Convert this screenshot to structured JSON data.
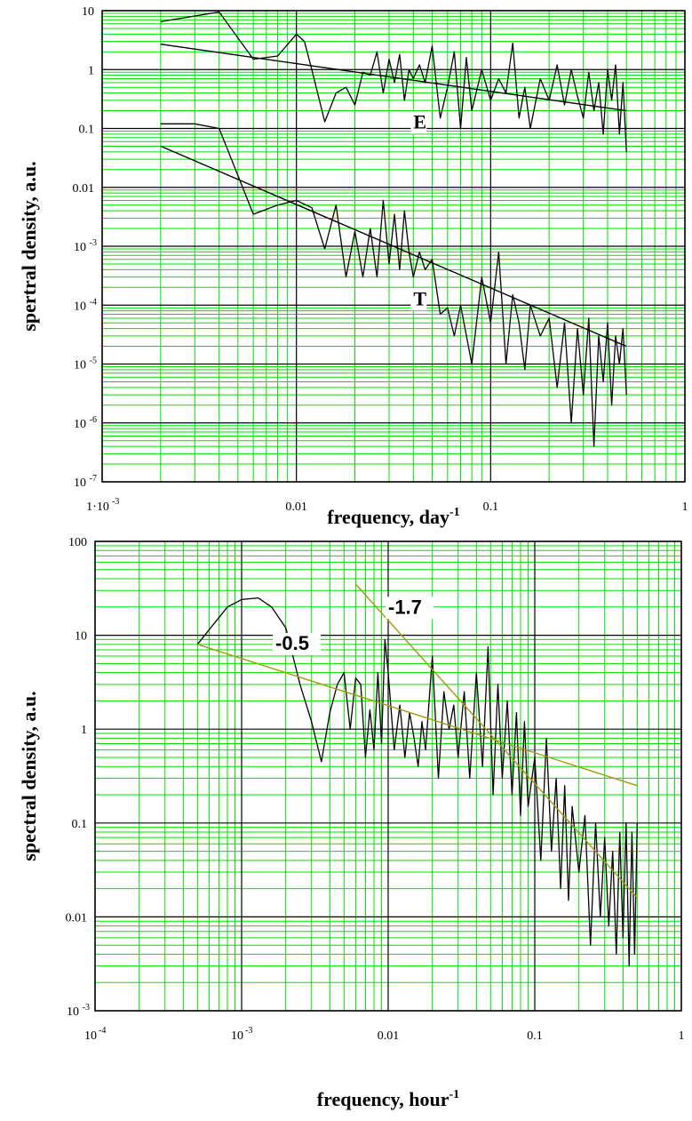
{
  "chart_data": [
    {
      "type": "line",
      "log_x": true,
      "log_y": true,
      "xlim": [
        0.001,
        1
      ],
      "ylim": [
        1e-07,
        10
      ],
      "grid": true,
      "grid_color": "#00e000",
      "major_grid_color": "#000000",
      "line_color": "#000000",
      "xlabel": "frequency, day",
      "xlabel_sup": "-1",
      "ylabel": "spertral density, a.u.",
      "xticks": [
        {
          "value": 0.001,
          "label": "1·10",
          "sup": "-3"
        },
        {
          "value": 0.01,
          "label": "0.01",
          "sup": ""
        },
        {
          "value": 0.1,
          "label": "0.1",
          "sup": ""
        },
        {
          "value": 1,
          "label": "1",
          "sup": ""
        }
      ],
      "yticks": [
        {
          "value": 10,
          "label": "10",
          "sup": ""
        },
        {
          "value": 1,
          "label": "1",
          "sup": ""
        },
        {
          "value": 0.1,
          "label": "0.1",
          "sup": ""
        },
        {
          "value": 0.01,
          "label": "0.01",
          "sup": ""
        },
        {
          "value": 0.001,
          "label": "10",
          "sup": "-3"
        },
        {
          "value": 0.0001,
          "label": "10",
          "sup": "-4"
        },
        {
          "value": 1e-05,
          "label": "10",
          "sup": "-5"
        },
        {
          "value": 1e-06,
          "label": "10",
          "sup": "-6"
        },
        {
          "value": 1e-07,
          "label": "10",
          "sup": "-7"
        }
      ],
      "series": [
        {
          "name": "E",
          "label_at": [
            0.04,
            0.1
          ],
          "x": [
            0.002,
            0.004,
            0.006,
            0.008,
            0.01,
            0.011,
            0.012,
            0.014,
            0.016,
            0.018,
            0.02,
            0.022,
            0.024,
            0.026,
            0.028,
            0.03,
            0.032,
            0.034,
            0.036,
            0.038,
            0.04,
            0.043,
            0.046,
            0.05,
            0.055,
            0.06,
            0.065,
            0.07,
            0.075,
            0.08,
            0.09,
            0.1,
            0.11,
            0.12,
            0.13,
            0.14,
            0.15,
            0.16,
            0.18,
            0.2,
            0.22,
            0.24,
            0.26,
            0.28,
            0.3,
            0.32,
            0.34,
            0.36,
            0.38,
            0.4,
            0.42,
            0.44,
            0.46,
            0.48,
            0.5
          ],
          "values": [
            6.5,
            9.5,
            1.5,
            1.7,
            4.0,
            3.0,
            1.0,
            0.13,
            0.4,
            0.5,
            0.25,
            0.9,
            0.8,
            2.0,
            0.4,
            1.5,
            0.6,
            1.8,
            0.3,
            1.0,
            0.7,
            1.2,
            0.6,
            2.5,
            0.15,
            0.5,
            2.0,
            0.1,
            1.6,
            0.2,
            1.0,
            0.3,
            0.7,
            0.4,
            2.8,
            0.15,
            0.5,
            0.1,
            0.7,
            0.3,
            1.2,
            0.25,
            1.0,
            0.35,
            0.15,
            0.9,
            0.2,
            0.6,
            0.08,
            1.0,
            0.3,
            1.2,
            0.08,
            0.6,
            0.04
          ]
        },
        {
          "name": "",
          "x": [
            0.002,
            0.5
          ],
          "values": [
            2.7,
            0.2
          ]
        },
        {
          "name": "T",
          "label_at": [
            0.04,
            0.0001
          ],
          "x": [
            0.002,
            0.003,
            0.004,
            0.006,
            0.008,
            0.01,
            0.012,
            0.014,
            0.016,
            0.018,
            0.02,
            0.022,
            0.024,
            0.026,
            0.028,
            0.03,
            0.032,
            0.034,
            0.036,
            0.038,
            0.04,
            0.043,
            0.046,
            0.05,
            0.055,
            0.06,
            0.065,
            0.07,
            0.08,
            0.09,
            0.1,
            0.11,
            0.12,
            0.13,
            0.14,
            0.15,
            0.16,
            0.18,
            0.2,
            0.22,
            0.24,
            0.26,
            0.28,
            0.3,
            0.32,
            0.34,
            0.36,
            0.38,
            0.4,
            0.42,
            0.44,
            0.46,
            0.48,
            0.5
          ],
          "values": [
            0.12,
            0.12,
            0.1,
            0.0035,
            0.005,
            0.006,
            0.0045,
            0.0009,
            0.005,
            0.0003,
            0.0018,
            0.0003,
            0.002,
            0.0003,
            0.006,
            0.0005,
            0.0035,
            0.0004,
            0.004,
            0.0008,
            0.0003,
            0.0008,
            0.0004,
            0.0006,
            7e-05,
            9e-05,
            3e-05,
            0.0001,
            1e-05,
            0.0003,
            5e-05,
            0.0008,
            1e-05,
            0.00015,
            5e-05,
            8e-06,
            0.0001,
            3e-05,
            6e-05,
            4e-06,
            5e-05,
            1e-06,
            4e-05,
            3e-06,
            6e-05,
            4e-07,
            3e-05,
            5e-06,
            5e-05,
            2e-06,
            3e-05,
            1e-05,
            4e-05,
            3e-06
          ]
        },
        {
          "name": "",
          "x": [
            0.002,
            0.5
          ],
          "values": [
            0.05,
            2e-05
          ]
        }
      ]
    },
    {
      "type": "line",
      "log_x": true,
      "log_y": true,
      "xlim": [
        0.0001,
        1
      ],
      "ylim": [
        0.001,
        100
      ],
      "grid": true,
      "grid_color": "#00e000",
      "major_grid_color": "#000000",
      "line_color": "#000000",
      "fit_color": "#a09a10",
      "xlabel": "frequency, hour",
      "xlabel_sup": "-1",
      "ylabel": "spectral density, a.u.",
      "xticks": [
        {
          "value": 0.0001,
          "label": "10",
          "sup": "-4"
        },
        {
          "value": 0.001,
          "label": "10",
          "sup": "-3"
        },
        {
          "value": 0.01,
          "label": "0.01",
          "sup": ""
        },
        {
          "value": 0.1,
          "label": "0.1",
          "sup": ""
        },
        {
          "value": 1,
          "label": "1",
          "sup": ""
        }
      ],
      "yticks": [
        {
          "value": 100,
          "label": "100",
          "sup": ""
        },
        {
          "value": 10,
          "label": "10",
          "sup": ""
        },
        {
          "value": 1,
          "label": "1",
          "sup": ""
        },
        {
          "value": 0.1,
          "label": "0.1",
          "sup": ""
        },
        {
          "value": 0.01,
          "label": "0.01",
          "sup": ""
        },
        {
          "value": 0.001,
          "label": "10",
          "sup": "-3"
        }
      ],
      "series": [
        {
          "name": "",
          "x": [
            0.0005,
            0.0008,
            0.001,
            0.0013,
            0.0016,
            0.002,
            0.0025,
            0.003,
            0.0035,
            0.004,
            0.0045,
            0.005,
            0.0055,
            0.006,
            0.0065,
            0.007,
            0.0075,
            0.008,
            0.0085,
            0.009,
            0.0095,
            0.01,
            0.011,
            0.012,
            0.013,
            0.014,
            0.015,
            0.016,
            0.017,
            0.018,
            0.02,
            0.022,
            0.024,
            0.026,
            0.028,
            0.03,
            0.033,
            0.036,
            0.04,
            0.044,
            0.048,
            0.052,
            0.056,
            0.06,
            0.065,
            0.07,
            0.075,
            0.08,
            0.085,
            0.09,
            0.1,
            0.11,
            0.12,
            0.13,
            0.14,
            0.15,
            0.16,
            0.17,
            0.18,
            0.2,
            0.22,
            0.24,
            0.26,
            0.28,
            0.3,
            0.32,
            0.34,
            0.36,
            0.38,
            0.4,
            0.42,
            0.44,
            0.46,
            0.48,
            0.5
          ],
          "values": [
            8.0,
            20.0,
            24.0,
            25.0,
            20.0,
            12.0,
            3.0,
            1.2,
            0.45,
            1.5,
            3.0,
            4.0,
            1.0,
            3.5,
            3.0,
            0.5,
            1.6,
            0.6,
            4.0,
            0.7,
            9.0,
            4.0,
            0.6,
            1.8,
            0.5,
            1.5,
            0.8,
            0.4,
            1.2,
            0.6,
            6.0,
            0.3,
            2.5,
            1.0,
            1.8,
            0.5,
            2.5,
            0.3,
            4.0,
            0.4,
            7.5,
            0.2,
            3.0,
            0.3,
            2.0,
            0.2,
            1.5,
            0.12,
            1.2,
            0.15,
            0.5,
            0.04,
            0.8,
            0.05,
            0.3,
            0.02,
            0.25,
            0.015,
            0.15,
            0.03,
            0.12,
            0.005,
            0.1,
            0.01,
            0.07,
            0.008,
            0.05,
            0.004,
            0.08,
            0.006,
            0.1,
            0.003,
            0.08,
            0.004,
            0.1
          ]
        },
        {
          "name": "",
          "slope_label": "-0.5",
          "label_at": [
            0.0017,
            7.0
          ],
          "x": [
            0.0005,
            0.5
          ],
          "values": [
            8.0,
            0.25
          ]
        },
        {
          "name": "",
          "slope_label": "-1.7",
          "label_at": [
            0.01,
            17.0
          ],
          "x": [
            0.006,
            0.5
          ],
          "values": [
            35.0,
            0.016
          ]
        }
      ]
    }
  ]
}
